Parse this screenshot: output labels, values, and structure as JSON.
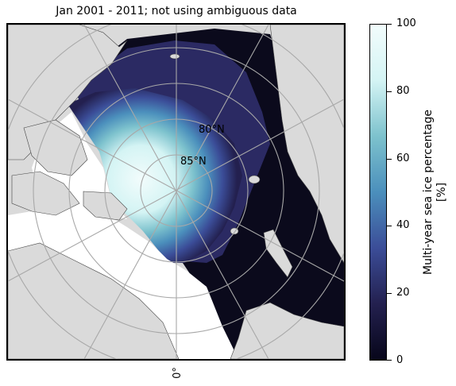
{
  "title": "Jan 2001 - 2011; not using ambiguous data",
  "map": {
    "latitude_labels": [
      "80°N",
      "85°N"
    ],
    "longitude_label": "0°",
    "colors": {
      "land": "#dadada",
      "no_data_water": "#ffffff",
      "ocean_low": "#0b0a1c",
      "grid": "#a8a8a8"
    }
  },
  "colorbar": {
    "label_line1": "Multi-year sea ice percentage",
    "label_line2": "[%]",
    "ticks": [
      "0",
      "20",
      "40",
      "60",
      "80",
      "100"
    ],
    "colors": [
      "#07061a",
      "#23204f",
      "#3b4d98",
      "#4b8fbc",
      "#7dc2cd",
      "#d4f4f4",
      "#f2fcfc"
    ]
  }
}
